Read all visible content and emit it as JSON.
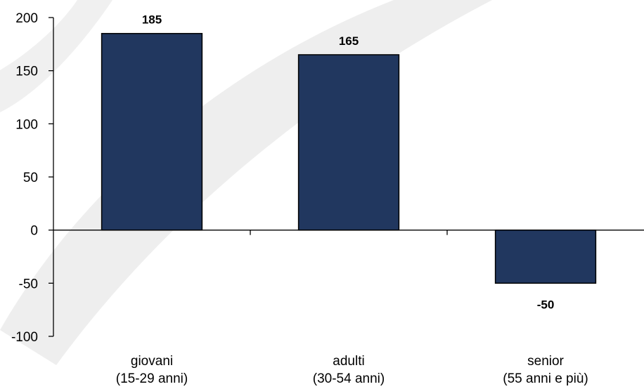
{
  "chart_data": {
    "type": "bar",
    "title": "",
    "xlabel": "",
    "ylabel": "",
    "categories": [
      [
        "giovani",
        "(15-29 anni)"
      ],
      [
        "adulti",
        "(30-54 anni)"
      ],
      [
        "senior",
        "(55 anni e più)"
      ]
    ],
    "values": [
      185,
      165,
      -50
    ],
    "data_labels": [
      "185",
      "165",
      "-50"
    ],
    "ylim": [
      -100,
      200
    ],
    "yticks": [
      200,
      150,
      100,
      50,
      0,
      -50,
      -100
    ],
    "ytick_labels": [
      "200",
      "150",
      "100",
      "50",
      "0",
      "-50",
      "-100"
    ],
    "grid": false,
    "legend": "none",
    "colors": {
      "bar_fill": "#21375f",
      "bar_stroke": "#000000",
      "axis": "#000000",
      "watermark": "#ececec"
    }
  }
}
